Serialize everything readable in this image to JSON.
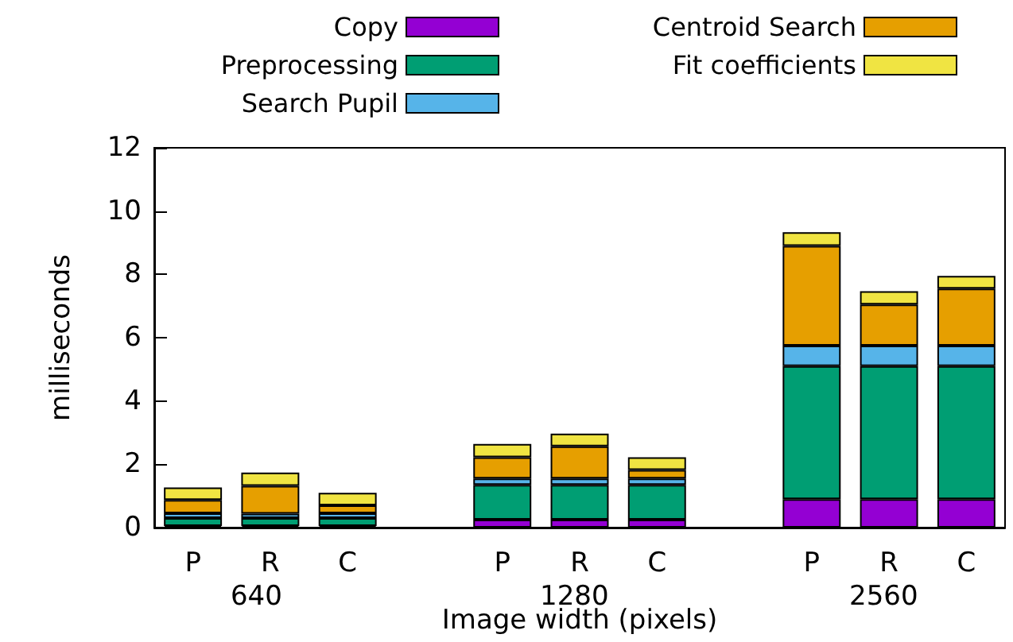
{
  "chart_data": {
    "type": "bar",
    "stacked": true,
    "xlabel": "Image width (pixels)",
    "ylabel": "milliseconds",
    "categories": [
      "P",
      "R",
      "C",
      null,
      "P",
      "R",
      "C",
      null,
      "P",
      "R",
      "C"
    ],
    "annotations": [
      "640",
      "1280",
      "2560"
    ],
    "series": [
      {
        "name": "Copy",
        "color": "#9400d3",
        "values": [
          0.05,
          0.05,
          0.05,
          null,
          0.25,
          0.25,
          0.25,
          null,
          0.9,
          0.9,
          0.9
        ]
      },
      {
        "name": "Preprocessing",
        "color": "#009e73",
        "values": [
          0.25,
          0.25,
          0.25,
          null,
          1.1,
          1.1,
          1.1,
          null,
          4.2,
          4.2,
          4.2
        ]
      },
      {
        "name": "Search Pupil",
        "color": "#56b4e9",
        "values": [
          0.15,
          0.14,
          0.15,
          null,
          0.2,
          0.2,
          0.2,
          null,
          0.65,
          0.65,
          0.65
        ]
      },
      {
        "name": "Centroid Search",
        "color": "#e69f00",
        "values": [
          0.42,
          0.88,
          0.25,
          null,
          0.67,
          1.02,
          0.27,
          null,
          3.15,
          1.3,
          1.8
        ]
      },
      {
        "name": "Fit coefficients",
        "color": "#f0e442",
        "values": [
          0.4,
          0.42,
          0.4,
          null,
          0.42,
          0.4,
          0.4,
          null,
          0.43,
          0.42,
          0.4
        ]
      }
    ],
    "ylim": [
      0,
      12
    ],
    "yticks": [
      0,
      2,
      4,
      6,
      8,
      10,
      12
    ],
    "grid": false,
    "legend": "top"
  }
}
